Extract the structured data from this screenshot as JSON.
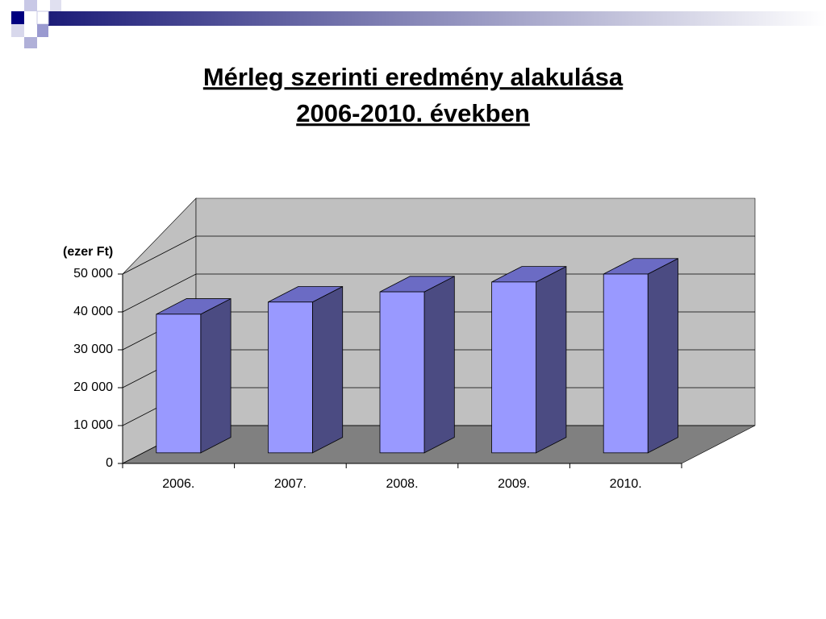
{
  "chart_data": {
    "type": "bar3d",
    "title": [
      "Mérleg szerinti eredmény alakulása",
      "2006-2010. években"
    ],
    "y_label": "(ezer Ft)",
    "categories": [
      "2006.",
      "2007.",
      "2008.",
      "2009.",
      "2010."
    ],
    "values": [
      36600,
      39800,
      42500,
      45100,
      47200
    ],
    "color": "#9999ff",
    "ylim": [
      0,
      50000
    ],
    "yticks": [
      {
        "value": 0,
        "label": "0"
      },
      {
        "value": 10000,
        "label": "10 000"
      },
      {
        "value": 20000,
        "label": "20 000"
      },
      {
        "value": 30000,
        "label": "30 000"
      },
      {
        "value": 40000,
        "label": "40 000"
      },
      {
        "value": 50000,
        "label": "50 000"
      }
    ],
    "grid": true
  }
}
